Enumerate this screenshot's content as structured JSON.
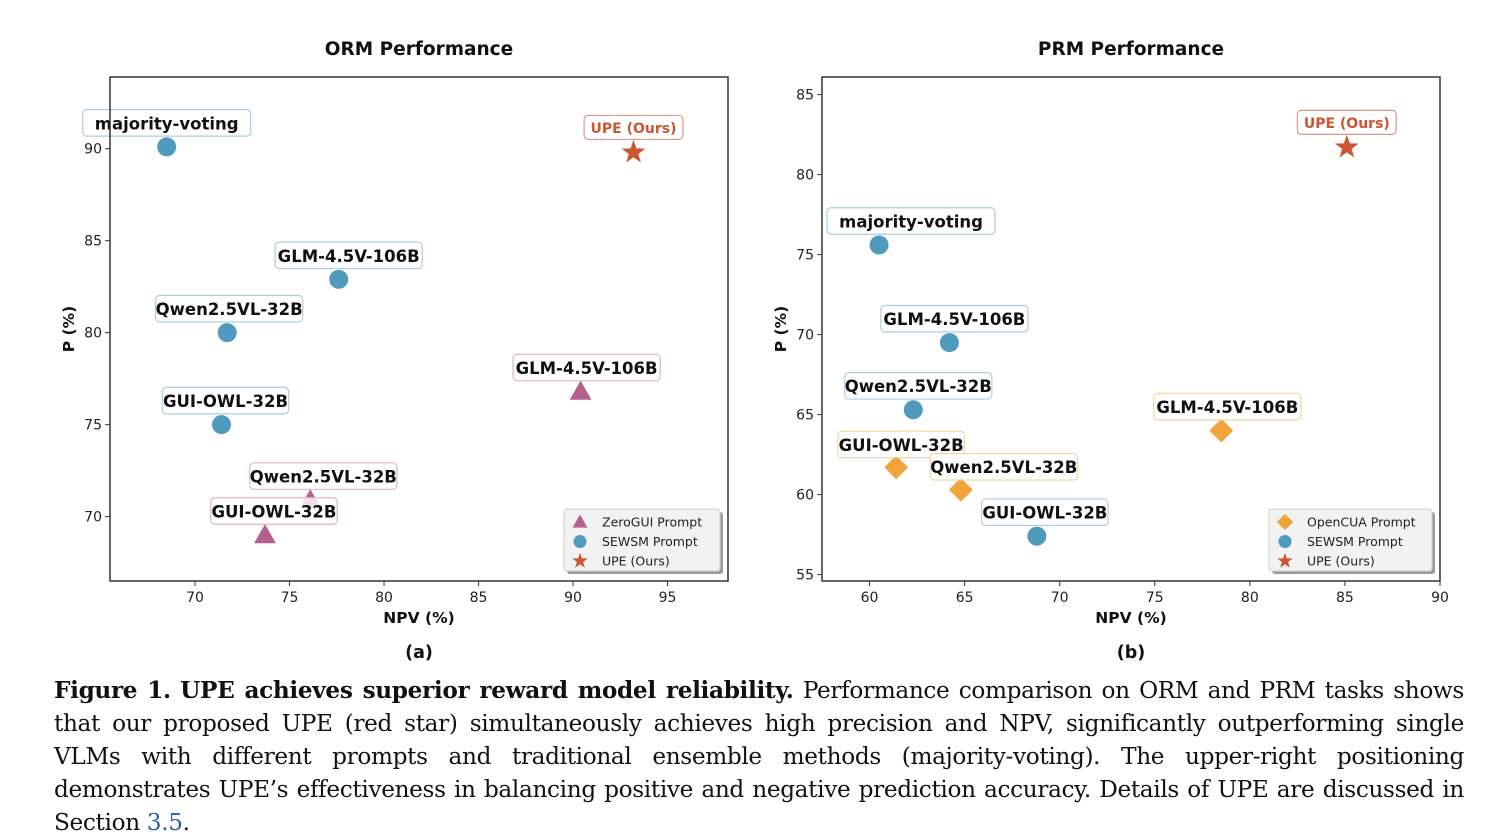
{
  "chart_data": [
    {
      "type": "scatter",
      "title": "ORM Performance",
      "panel_label": "(a)",
      "xlabel": "NPV (%)",
      "ylabel": "P (%)",
      "xlim": [
        65.5,
        98.2
      ],
      "ylim": [
        66.5,
        93.9
      ],
      "xticks": [
        70,
        75,
        80,
        85,
        90,
        95
      ],
      "yticks": [
        70,
        75,
        80,
        85,
        90
      ],
      "grid": false,
      "legend_position": "lower-right",
      "legend": [
        {
          "label": "ZeroGUI Prompt",
          "marker": "triangle",
          "color": "#b5618e"
        },
        {
          "label": "SEWSM Prompt",
          "marker": "circle",
          "color": "#4f9abd"
        },
        {
          "label": "UPE (Ours)",
          "marker": "star",
          "color": "#cc5533"
        }
      ],
      "series": [
        {
          "name": "SEWSM Prompt",
          "marker": "circle",
          "color": "#4f9abd",
          "label_border": "#a9cfe0",
          "points": [
            {
              "label": "majority-voting",
              "x": 68.5,
              "y": 90.1
            },
            {
              "label": "GLM-4.5V-106B",
              "x": 77.6,
              "y": 82.9
            },
            {
              "label": "Qwen2.5VL-32B",
              "x": 71.7,
              "y": 80.0
            },
            {
              "label": "GUI-OWL-32B",
              "x": 71.4,
              "y": 75.0
            }
          ]
        },
        {
          "name": "ZeroGUI Prompt",
          "marker": "triangle",
          "color": "#b5618e",
          "label_border": "#dfb4c9",
          "points": [
            {
              "label": "GLM-4.5V-106B",
              "x": 90.4,
              "y": 76.8
            },
            {
              "label": "Qwen2.5VL-32B",
              "x": 76.1,
              "y": 70.9
            },
            {
              "label": "GUI-OWL-32B",
              "x": 73.7,
              "y": 69.0
            }
          ]
        },
        {
          "name": "UPE (Ours)",
          "marker": "star",
          "color": "#cc5533",
          "label_border": "#d99a85",
          "points": [
            {
              "label": "UPE (Ours)",
              "x": 93.2,
              "y": 89.8
            }
          ]
        }
      ]
    },
    {
      "type": "scatter",
      "title": "PRM Performance",
      "panel_label": "(b)",
      "xlabel": "NPV (%)",
      "ylabel": "P (%)",
      "xlim": [
        57.5,
        90.0
      ],
      "ylim": [
        54.6,
        86.1
      ],
      "xticks": [
        60,
        65,
        70,
        75,
        80,
        85,
        90
      ],
      "yticks": [
        55,
        60,
        65,
        70,
        75,
        80,
        85
      ],
      "grid": false,
      "legend_position": "lower-right",
      "legend": [
        {
          "label": "OpenCUA Prompt",
          "marker": "diamond",
          "color": "#f0a43a"
        },
        {
          "label": "SEWSM Prompt",
          "marker": "circle",
          "color": "#4f9abd"
        },
        {
          "label": "UPE (Ours)",
          "marker": "star",
          "color": "#cc5533"
        }
      ],
      "series": [
        {
          "name": "SEWSM Prompt",
          "marker": "circle",
          "color": "#4f9abd",
          "label_border": "#a9cfe0",
          "points": [
            {
              "label": "majority-voting",
              "x": 60.5,
              "y": 75.6
            },
            {
              "label": "GLM-4.5V-106B",
              "x": 64.2,
              "y": 69.5
            },
            {
              "label": "Qwen2.5VL-32B",
              "x": 62.3,
              "y": 65.3
            },
            {
              "label": "GUI-OWL-32B",
              "x": 68.8,
              "y": 57.4
            }
          ]
        },
        {
          "name": "OpenCUA Prompt",
          "marker": "diamond",
          "color": "#f0a43a",
          "label_border": "#f5d3a3",
          "points": [
            {
              "label": "GLM-4.5V-106B",
              "x": 78.5,
              "y": 64.0
            },
            {
              "label": "GUI-OWL-32B",
              "x": 61.4,
              "y": 61.7
            },
            {
              "label": "Qwen2.5VL-32B",
              "x": 64.8,
              "y": 60.3
            }
          ]
        },
        {
          "name": "UPE (Ours)",
          "marker": "star",
          "color": "#cc5533",
          "label_border": "#d99a85",
          "points": [
            {
              "label": "UPE (Ours)",
              "x": 85.1,
              "y": 81.7
            }
          ]
        }
      ]
    }
  ],
  "caption": {
    "label": "Figure 1.",
    "headline": "UPE achieves superior reward model reliability.",
    "body": " Performance comparison on ORM and PRM tasks shows that our proposed UPE (red star) simultaneously achieves high precision and NPV, significantly outperforming single VLMs with different prompts and traditional ensemble methods (majority-voting). The upper-right positioning demonstrates UPE’s effectiveness in balancing positive and negative prediction accuracy. Details of UPE are discussed in Section ",
    "section_ref": "3.5",
    "end": "."
  }
}
